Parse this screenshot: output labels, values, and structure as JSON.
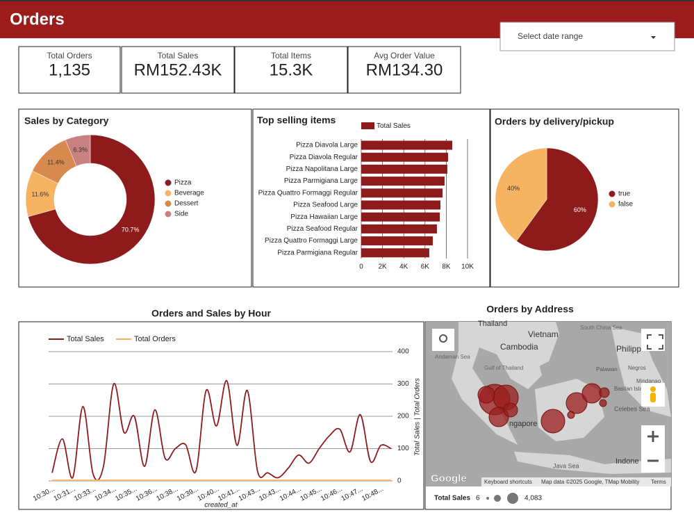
{
  "header": {
    "title": "Orders",
    "date_range": "Select date range"
  },
  "kpis": [
    {
      "label": "Total Orders",
      "value": "1,135"
    },
    {
      "label": "Total Sales",
      "value": "RM152.43K"
    },
    {
      "label": "Total Items",
      "value": "15.3K"
    },
    {
      "label": "Avg Order Value",
      "value": "RM134.30"
    }
  ],
  "chart_data": [
    {
      "type": "pie",
      "title": "Sales by Category",
      "hole": true,
      "categories": [
        "Pizza",
        "Beverage",
        "Dessert",
        "Side"
      ],
      "values": [
        70.7,
        11.6,
        11.4,
        6.3
      ],
      "value_labels": [
        "70.7%",
        "11.6%",
        "11.4%",
        "6.3%"
      ],
      "colors": [
        "#8e1b1b",
        "#f6b462",
        "#d88a4e",
        "#c98080"
      ],
      "legend": "right"
    },
    {
      "type": "bar",
      "orientation": "horizontal",
      "title": "Top selling items",
      "categories": [
        "Pizza Diavola Large",
        "Pizza Diavola Regular",
        "Pizza Napolitana Large",
        "Pizza Parmigiana Large",
        "Pizza Quattro Formaggi Regular",
        "Pizza Seafood Large",
        "Pizza Hawaiian Large",
        "Pizza Seafood Regular",
        "Pizza Quattro Formaggi Large",
        "Pizza Parmigiana Regular"
      ],
      "series": [
        {
          "name": "Total Sales",
          "color": "#8e1b1b",
          "values": [
            8560,
            8170,
            8100,
            7840,
            7650,
            7450,
            7390,
            7120,
            6730,
            6400
          ]
        }
      ],
      "xlim": [
        0,
        10000
      ],
      "xticks": [
        0,
        {
          "value": 2000,
          "label": "2K"
        },
        {
          "value": 4000,
          "label": "4K"
        },
        {
          "value": 6000,
          "label": "6K"
        },
        {
          "value": 8000,
          "label": "8K"
        },
        {
          "value": 10000,
          "label": "10K"
        }
      ],
      "grid": true,
      "legend": "top"
    },
    {
      "type": "pie",
      "title": "Orders by delivery/pickup",
      "hole": false,
      "categories": [
        "true",
        "false"
      ],
      "values": [
        60,
        40
      ],
      "value_labels": [
        "60%",
        "40%"
      ],
      "colors": [
        "#8e1b1b",
        "#f6b462"
      ],
      "legend": "right"
    },
    {
      "type": "line",
      "title": "Orders and Sales by Hour",
      "categories": [
        "10:30...",
        null,
        "10:31...",
        null,
        "10:33...",
        null,
        "10:34...",
        null,
        "10:35...",
        null,
        "10:36...",
        null,
        "10:38...",
        null,
        "10:39...",
        null,
        "10:40...",
        null,
        "10:41...",
        null,
        "10:43...",
        null,
        "10:43...",
        null,
        "10:44...",
        null,
        "10:45...",
        null,
        "10:46...",
        null,
        "10:47...",
        null,
        "10:48...",
        null
      ],
      "series": [
        {
          "name": "Total Sales",
          "color": "#8e1b1b",
          "values": [
            25,
            130,
            10,
            230,
            20,
            45,
            300,
            150,
            200,
            45,
            220,
            70,
            100,
            112,
            30,
            280,
            170,
            310,
            110,
            280,
            30,
            25,
            10,
            40,
            80,
            55,
            100,
            140,
            160,
            90,
            205,
            60,
            110,
            100
          ]
        },
        {
          "name": "Total Orders",
          "color": "#f6b462",
          "values": [
            2,
            2,
            2,
            2,
            2,
            2,
            2,
            2,
            2,
            2,
            2,
            2,
            2,
            2,
            2,
            2,
            2,
            2,
            2,
            2,
            2,
            2,
            2,
            2,
            2,
            2,
            2,
            2,
            2,
            2,
            2,
            2,
            2,
            2
          ]
        }
      ],
      "ylim": [
        0,
        400
      ],
      "yticks": [
        0,
        100,
        200,
        300,
        400
      ],
      "grid": true,
      "legend": "top-left",
      "y_label": "Total Sales | Total Orders",
      "x_label": "created_at"
    }
  ],
  "map": {
    "title": "Orders by Address",
    "places": [
      "Thailand",
      "Vietnam",
      "Cambodia",
      "South China Sea",
      "Andaman Sea",
      "Gulf of Thailand",
      "Philipp",
      "Palawan",
      "Negros",
      "Mindanao",
      "Basilan Isla",
      "Celebes Sea",
      "ngapore",
      "Java Sea",
      "Indone"
    ],
    "logo": "Google",
    "attribution": [
      "Keyboard shortcuts",
      "Map data ©2025 Google, TMap Mobility",
      "Terms"
    ],
    "legend_name": "Total Sales",
    "size_legend": [
      6,
      {
        "value": 4083,
        "label": "4,083"
      }
    ]
  }
}
